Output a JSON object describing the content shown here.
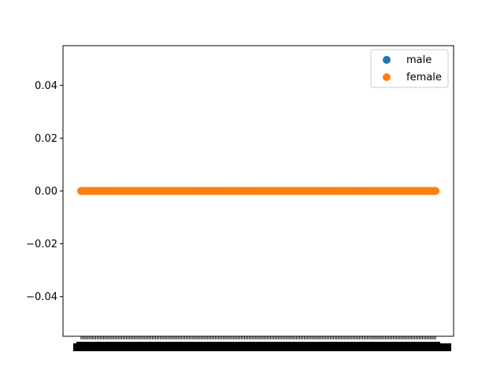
{
  "chart_data": {
    "type": "scatter",
    "title": "",
    "xlabel": "",
    "ylabel": "",
    "ylim": [
      -0.055,
      0.055
    ],
    "yticks": [
      -0.04,
      -0.02,
      0.0,
      0.02,
      0.04
    ],
    "ytick_labels": [
      "−0.04",
      "−0.02",
      "0.00",
      "0.02",
      "0.04"
    ],
    "x_point_count": 220,
    "legend_position": "upper right",
    "series": [
      {
        "name": "male",
        "color": "#1f77b4",
        "y": 0.0
      },
      {
        "name": "female",
        "color": "#ff7f0e",
        "y": 0.0
      }
    ]
  }
}
